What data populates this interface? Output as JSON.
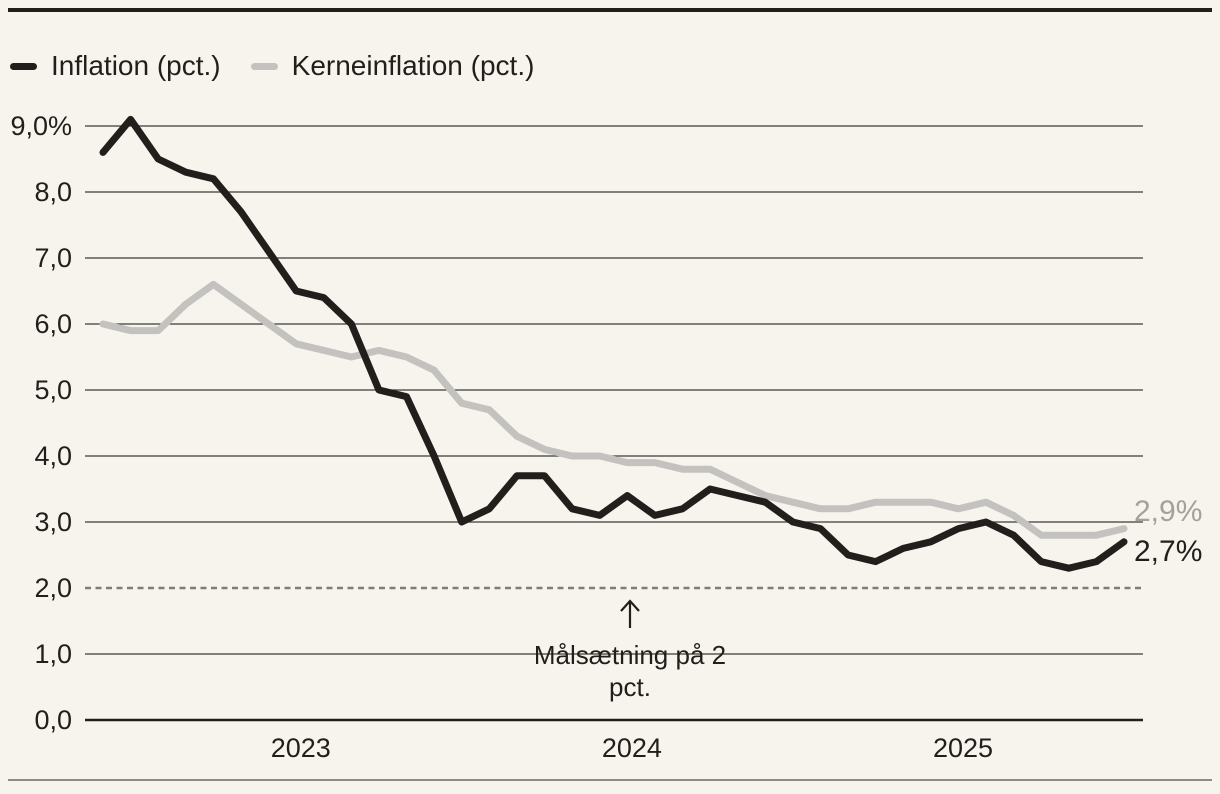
{
  "page": {
    "background": "#f7f4ee"
  },
  "legend": {
    "position": "top-left",
    "items": [
      {
        "label": "Inflation (pct.)",
        "color": "#211e1b"
      },
      {
        "label": "Kerneinflation (pct.)",
        "color": "#c3c2bf"
      }
    ]
  },
  "chart_data": {
    "type": "line",
    "title": "",
    "xlabel": "",
    "ylabel": "",
    "ylim": [
      0,
      9.4
    ],
    "grid": true,
    "x": [
      "2022-05",
      "2022-06",
      "2022-07",
      "2022-08",
      "2022-09",
      "2022-10",
      "2022-11",
      "2022-12",
      "2023-01",
      "2023-02",
      "2023-03",
      "2023-04",
      "2023-05",
      "2023-06",
      "2023-07",
      "2023-08",
      "2023-09",
      "2023-10",
      "2023-11",
      "2023-12",
      "2024-01",
      "2024-02",
      "2024-03",
      "2024-04",
      "2024-05",
      "2024-06",
      "2024-07",
      "2024-08",
      "2024-09",
      "2024-10",
      "2024-11",
      "2024-12",
      "2025-01",
      "2025-02",
      "2025-03",
      "2025-04",
      "2025-05",
      "2025-06"
    ],
    "series": [
      {
        "name": "Inflation (pct.)",
        "color": "#211e1b",
        "values": [
          8.6,
          9.1,
          8.5,
          8.3,
          8.2,
          7.7,
          7.1,
          6.5,
          6.4,
          6.0,
          5.0,
          4.9,
          4.0,
          3.0,
          3.2,
          3.7,
          3.7,
          3.2,
          3.1,
          3.4,
          3.1,
          3.2,
          3.5,
          3.4,
          3.3,
          3.0,
          2.9,
          2.5,
          2.4,
          2.6,
          2.7,
          2.9,
          3.0,
          2.8,
          2.4,
          2.3,
          2.4,
          2.7
        ]
      },
      {
        "name": "Kerneinflation (pct.)",
        "color": "#c3c2bf",
        "values": [
          6.0,
          5.9,
          5.9,
          6.3,
          6.6,
          6.3,
          6.0,
          5.7,
          5.6,
          5.5,
          5.6,
          5.5,
          5.3,
          4.8,
          4.7,
          4.3,
          4.1,
          4.0,
          4.0,
          3.9,
          3.9,
          3.8,
          3.8,
          3.6,
          3.4,
          3.3,
          3.2,
          3.2,
          3.3,
          3.3,
          3.3,
          3.2,
          3.3,
          3.1,
          2.8,
          2.8,
          2.8,
          2.9
        ]
      }
    ],
    "y_ticks": [
      {
        "label": "9,0%",
        "value": 9
      },
      {
        "label": "8,0",
        "value": 8
      },
      {
        "label": "7,0",
        "value": 7
      },
      {
        "label": "6,0",
        "value": 6
      },
      {
        "label": "5,0",
        "value": 5
      },
      {
        "label": "4,0",
        "value": 4
      },
      {
        "label": "3,0",
        "value": 3
      },
      {
        "label": "2,0",
        "value": 2
      },
      {
        "label": "1,0",
        "value": 1
      },
      {
        "label": "0,0",
        "value": 0
      }
    ],
    "x_tick_years": [
      "2023",
      "2024",
      "2025"
    ],
    "target_line": {
      "value": 2,
      "style": "dashed",
      "color": "#807d78"
    },
    "annotation": {
      "lines": [
        "Målsætning på 2",
        "pct."
      ],
      "arrow": "up",
      "points_to_value": 2
    },
    "end_labels": [
      {
        "label": "2,9%",
        "series": "Kerneinflation (pct.)",
        "color": "#a3a19c"
      },
      {
        "label": "2,7%",
        "series": "Inflation (pct.)",
        "color": "#211e1b"
      }
    ],
    "gridline_color": "#3d3a35",
    "axis_color": "#211e1b"
  }
}
